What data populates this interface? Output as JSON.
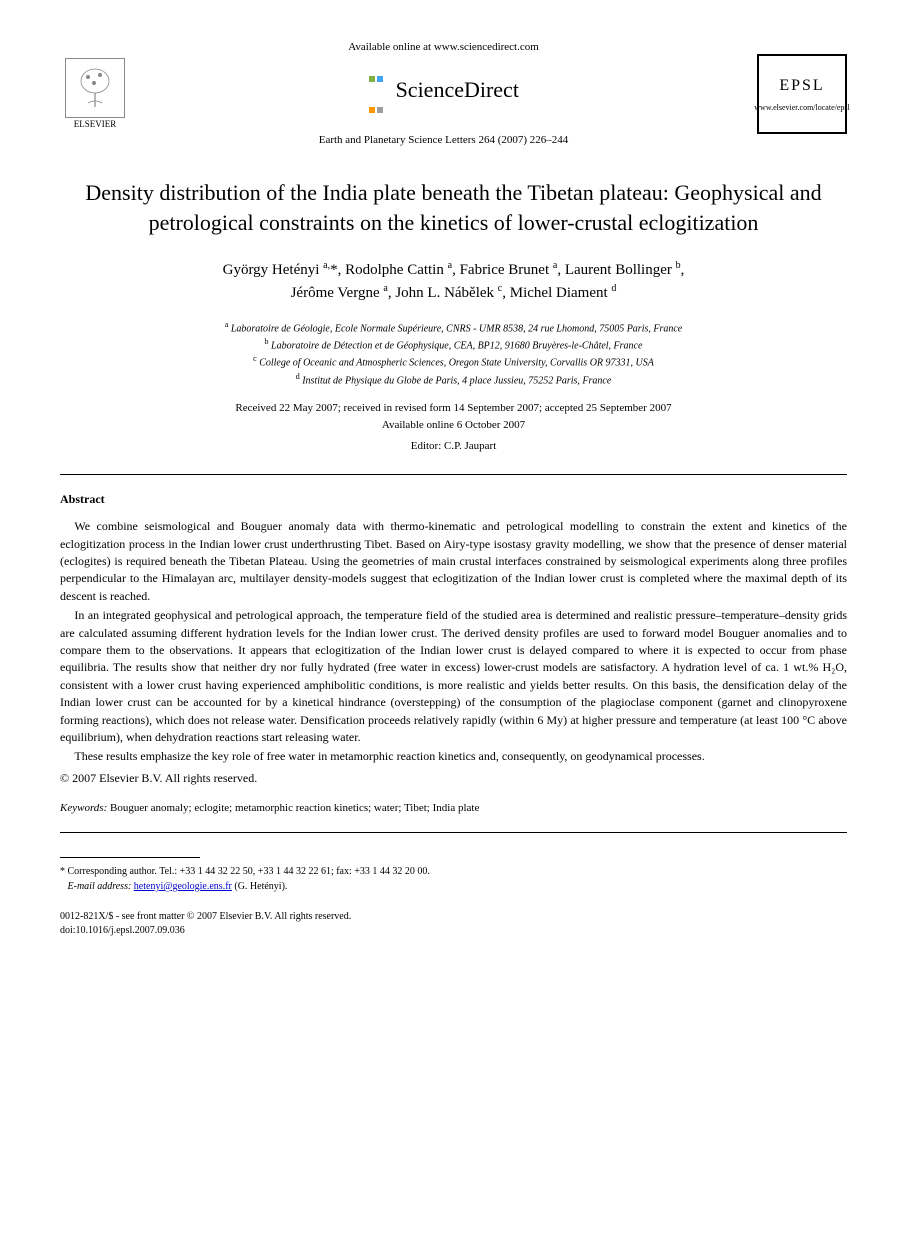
{
  "header": {
    "elsevier_label": "ELSEVIER",
    "available_text": "Available online at www.sciencedirect.com",
    "sciencedirect_label": "ScienceDirect",
    "citation": "Earth and Planetary Science Letters 264 (2007) 226–244",
    "epsl_label": "EPSL",
    "epsl_url": "www.elsevier.com/locate/epsl",
    "sd_dot_colors": [
      "#7cb342",
      "#42a5f5",
      "#ff9800",
      "#9e9e9e"
    ]
  },
  "title": "Density distribution of the India plate beneath the Tibetan plateau: Geophysical and petrological constraints on the kinetics of lower-crustal eclogitization",
  "authors_html": "György Hetényi <sup>a,</sup>*, Rodolphe Cattin <sup>a</sup>, Fabrice Brunet <sup>a</sup>, Laurent Bollinger <sup>b</sup>,<br>Jérôme Vergne <sup>a</sup>, John L. Nábělek <sup>c</sup>, Michel Diament <sup>d</sup>",
  "affiliations": [
    "<sup>a</sup> Laboratoire de Géologie, Ecole Normale Supérieure, CNRS - UMR 8538, 24 rue Lhomond, 75005 Paris, France",
    "<sup>b</sup> Laboratoire de Détection et de Géophysique, CEA, BP12, 91680 Bruyères-le-Châtel, France",
    "<sup>c</sup> College of Oceanic and Atmospheric Sciences, Oregon State University, Corvallis OR 97331, USA",
    "<sup>d</sup> Institut de Physique du Globe de Paris, 4 place Jussieu, 75252 Paris, France"
  ],
  "dates": {
    "line1": "Received 22 May 2007; received in revised form 14 September 2007; accepted 25 September 2007",
    "line2": "Available online 6 October 2007"
  },
  "editor": "Editor: C.P. Jaupart",
  "abstract": {
    "heading": "Abstract",
    "paragraphs": [
      "We combine seismological and Bouguer anomaly data with thermo-kinematic and petrological modelling to constrain the extent and kinetics of the eclogitization process in the Indian lower crust underthrusting Tibet. Based on Airy-type isostasy gravity modelling, we show that the presence of denser material (eclogites) is required beneath the Tibetan Plateau. Using the geometries of main crustal interfaces constrained by seismological experiments along three profiles perpendicular to the Himalayan arc, multilayer density-models suggest that eclogitization of the Indian lower crust is completed where the maximal depth of its descent is reached.",
      "In an integrated geophysical and petrological approach, the temperature field of the studied area is determined and realistic pressure–temperature–density grids are calculated assuming different hydration levels for the Indian lower crust. The derived density profiles are used to forward model Bouguer anomalies and to compare them to the observations. It appears that eclogitization of the Indian lower crust is delayed compared to where it is expected to occur from phase equilibria. The results show that neither dry nor fully hydrated (free water in excess) lower-crust models are satisfactory. A hydration level of ca. 1 wt.% H₂O, consistent with a lower crust having experienced amphibolitic conditions, is more realistic and yields better results. On this basis, the densification delay of the Indian lower crust can be accounted for by a kinetical hindrance (overstepping) of the consumption of the plagioclase component (garnet and clinopyroxene forming reactions), which does not release water. Densification proceeds relatively rapidly (within 6 My) at higher pressure and temperature (at least 100 °C above equilibrium), when dehydration reactions start releasing water.",
      "These results emphasize the key role of free water in metamorphic reaction kinetics and, consequently, on geodynamical processes."
    ],
    "copyright": "© 2007 Elsevier B.V. All rights reserved."
  },
  "keywords": {
    "label": "Keywords:",
    "text": " Bouguer anomaly; eclogite; metamorphic reaction kinetics; water; Tibet; India plate"
  },
  "footnote": {
    "corr": "* Corresponding author. Tel.: +33 1 44 32 22 50, +33 1 44 32 22 61; fax: +33 1 44 32 20 00.",
    "email_label": "E-mail address:",
    "email": "hetenyi@geologie.ens.fr",
    "email_suffix": " (G. Hetényi)."
  },
  "footer": {
    "line1": "0012-821X/$ - see front matter © 2007 Elsevier B.V. All rights reserved.",
    "line2": "doi:10.1016/j.epsl.2007.09.036"
  }
}
